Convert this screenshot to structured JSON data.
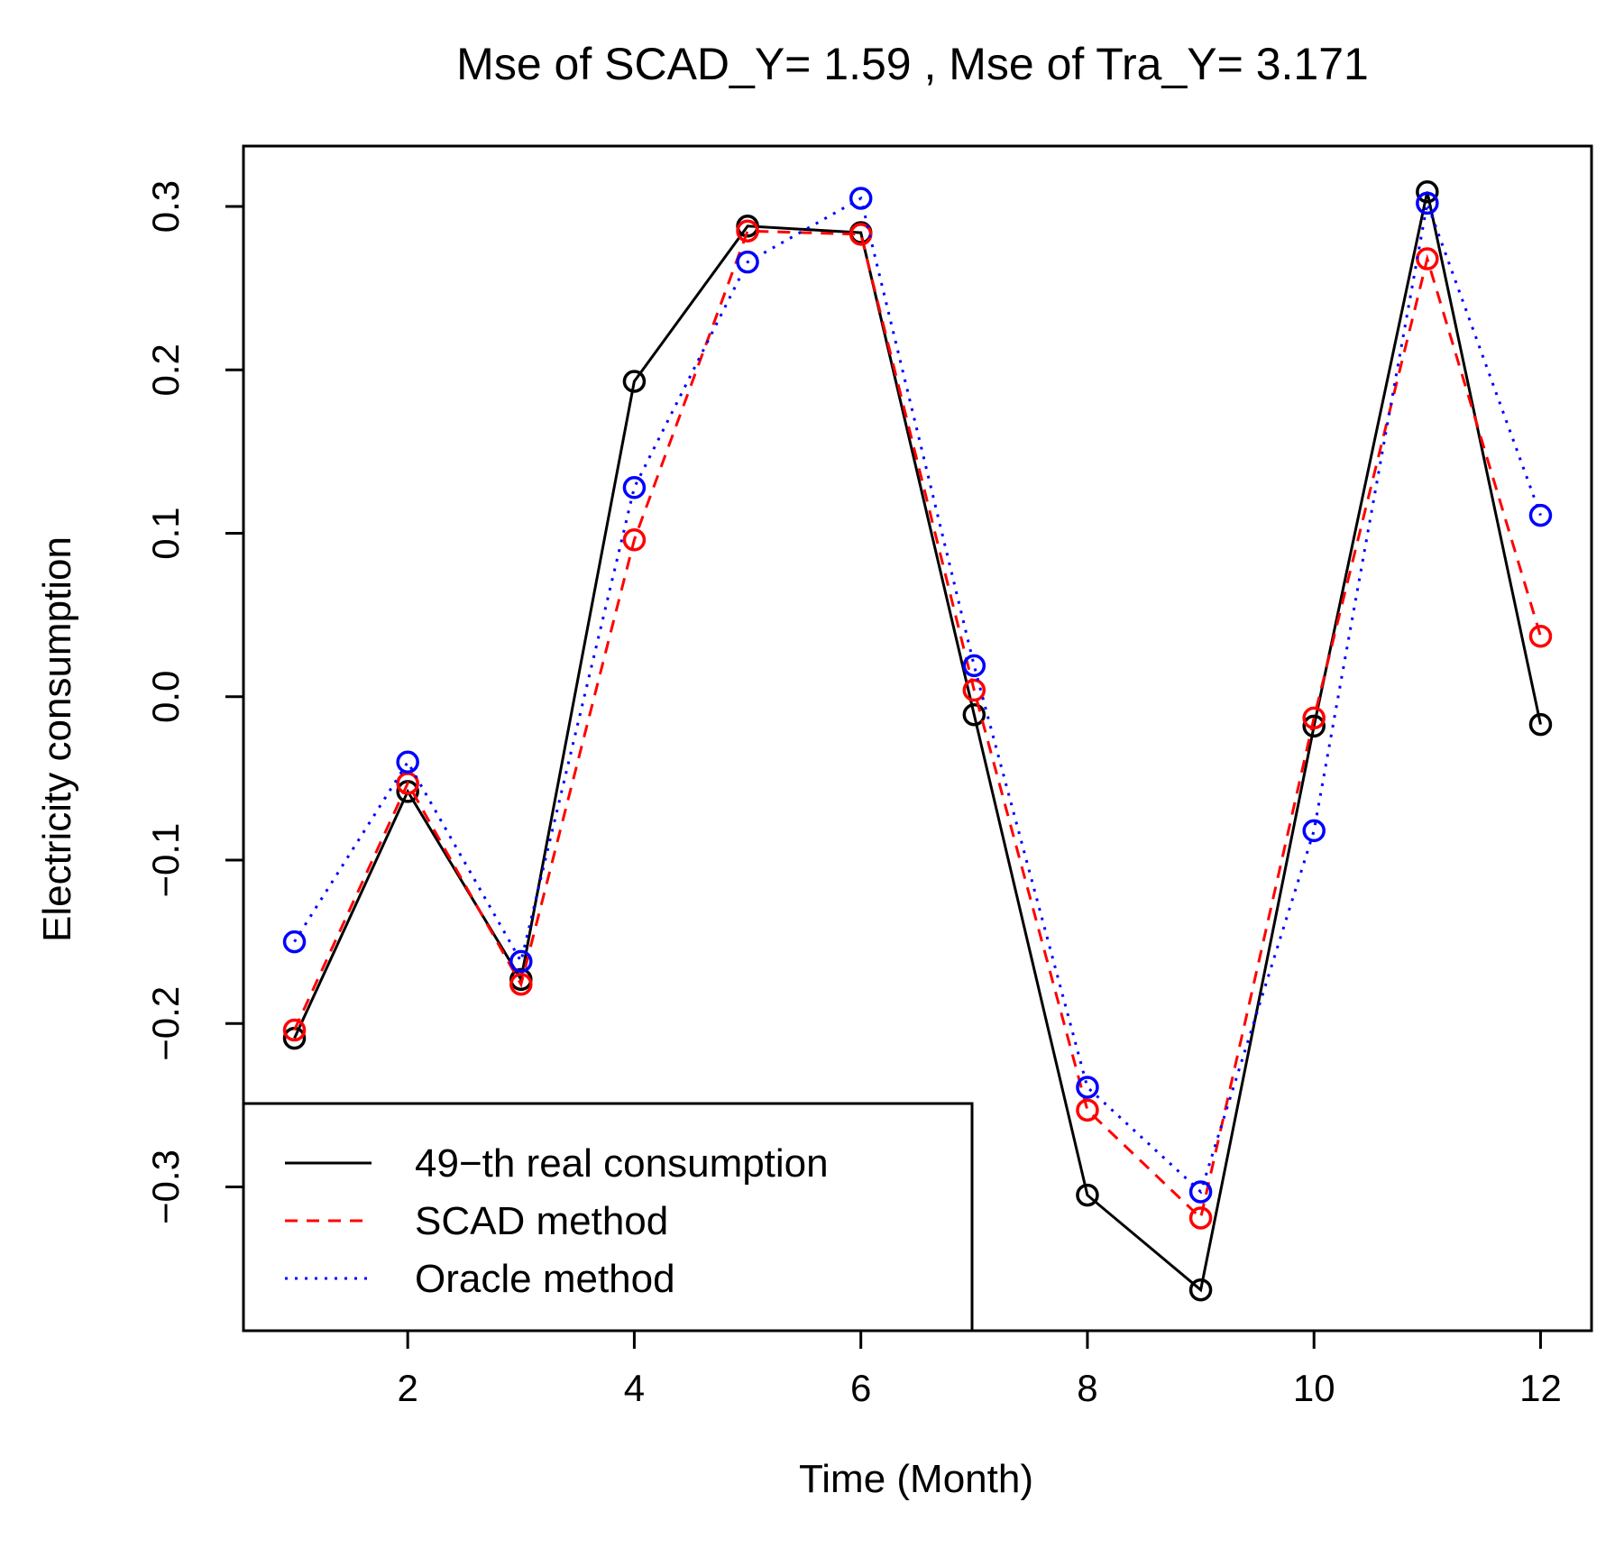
{
  "chart_data": {
    "type": "line",
    "title": "Mse of SCAD_Y= 1.59 , Mse of Tra_Y= 3.171",
    "xlabel": "Time (Month)",
    "ylabel": "Electricity consumption",
    "xlim": [
      0.55,
      12.45
    ],
    "ylim": [
      -0.388,
      0.337
    ],
    "x_ticks": [
      2,
      4,
      6,
      8,
      10,
      12
    ],
    "x_tick_labels": [
      "2",
      "4",
      "6",
      "8",
      "10",
      "12"
    ],
    "y_ticks": [
      -0.3,
      -0.2,
      -0.1,
      0.0,
      0.1,
      0.2,
      0.3
    ],
    "y_tick_labels": [
      "−0.3",
      "−0.2",
      "−0.1",
      "0.0",
      "0.1",
      "0.2",
      "0.3"
    ],
    "grid": false,
    "legend_position": "bottom-left",
    "x": [
      1,
      2,
      3,
      4,
      5,
      6,
      7,
      8,
      9,
      10,
      11,
      12
    ],
    "series": [
      {
        "name": "49−th real consumption",
        "color": "#000000",
        "line_style": "solid",
        "marker": "circle",
        "values": [
          -0.209,
          -0.058,
          -0.173,
          0.193,
          0.288,
          0.284,
          -0.011,
          -0.305,
          -0.363,
          -0.018,
          0.309,
          -0.017
        ]
      },
      {
        "name": "SCAD method",
        "color": "#ff0000",
        "line_style": "dashed",
        "marker": "circle",
        "values": [
          -0.204,
          -0.053,
          -0.176,
          0.096,
          0.285,
          0.283,
          0.004,
          -0.253,
          -0.319,
          -0.013,
          0.268,
          0.037
        ]
      },
      {
        "name": "Oracle method",
        "color": "#0000ff",
        "line_style": "dotted",
        "marker": "circle",
        "values": [
          -0.15,
          -0.04,
          -0.162,
          0.128,
          0.266,
          0.305,
          0.019,
          -0.239,
          -0.303,
          -0.082,
          0.302,
          0.111
        ]
      }
    ]
  }
}
